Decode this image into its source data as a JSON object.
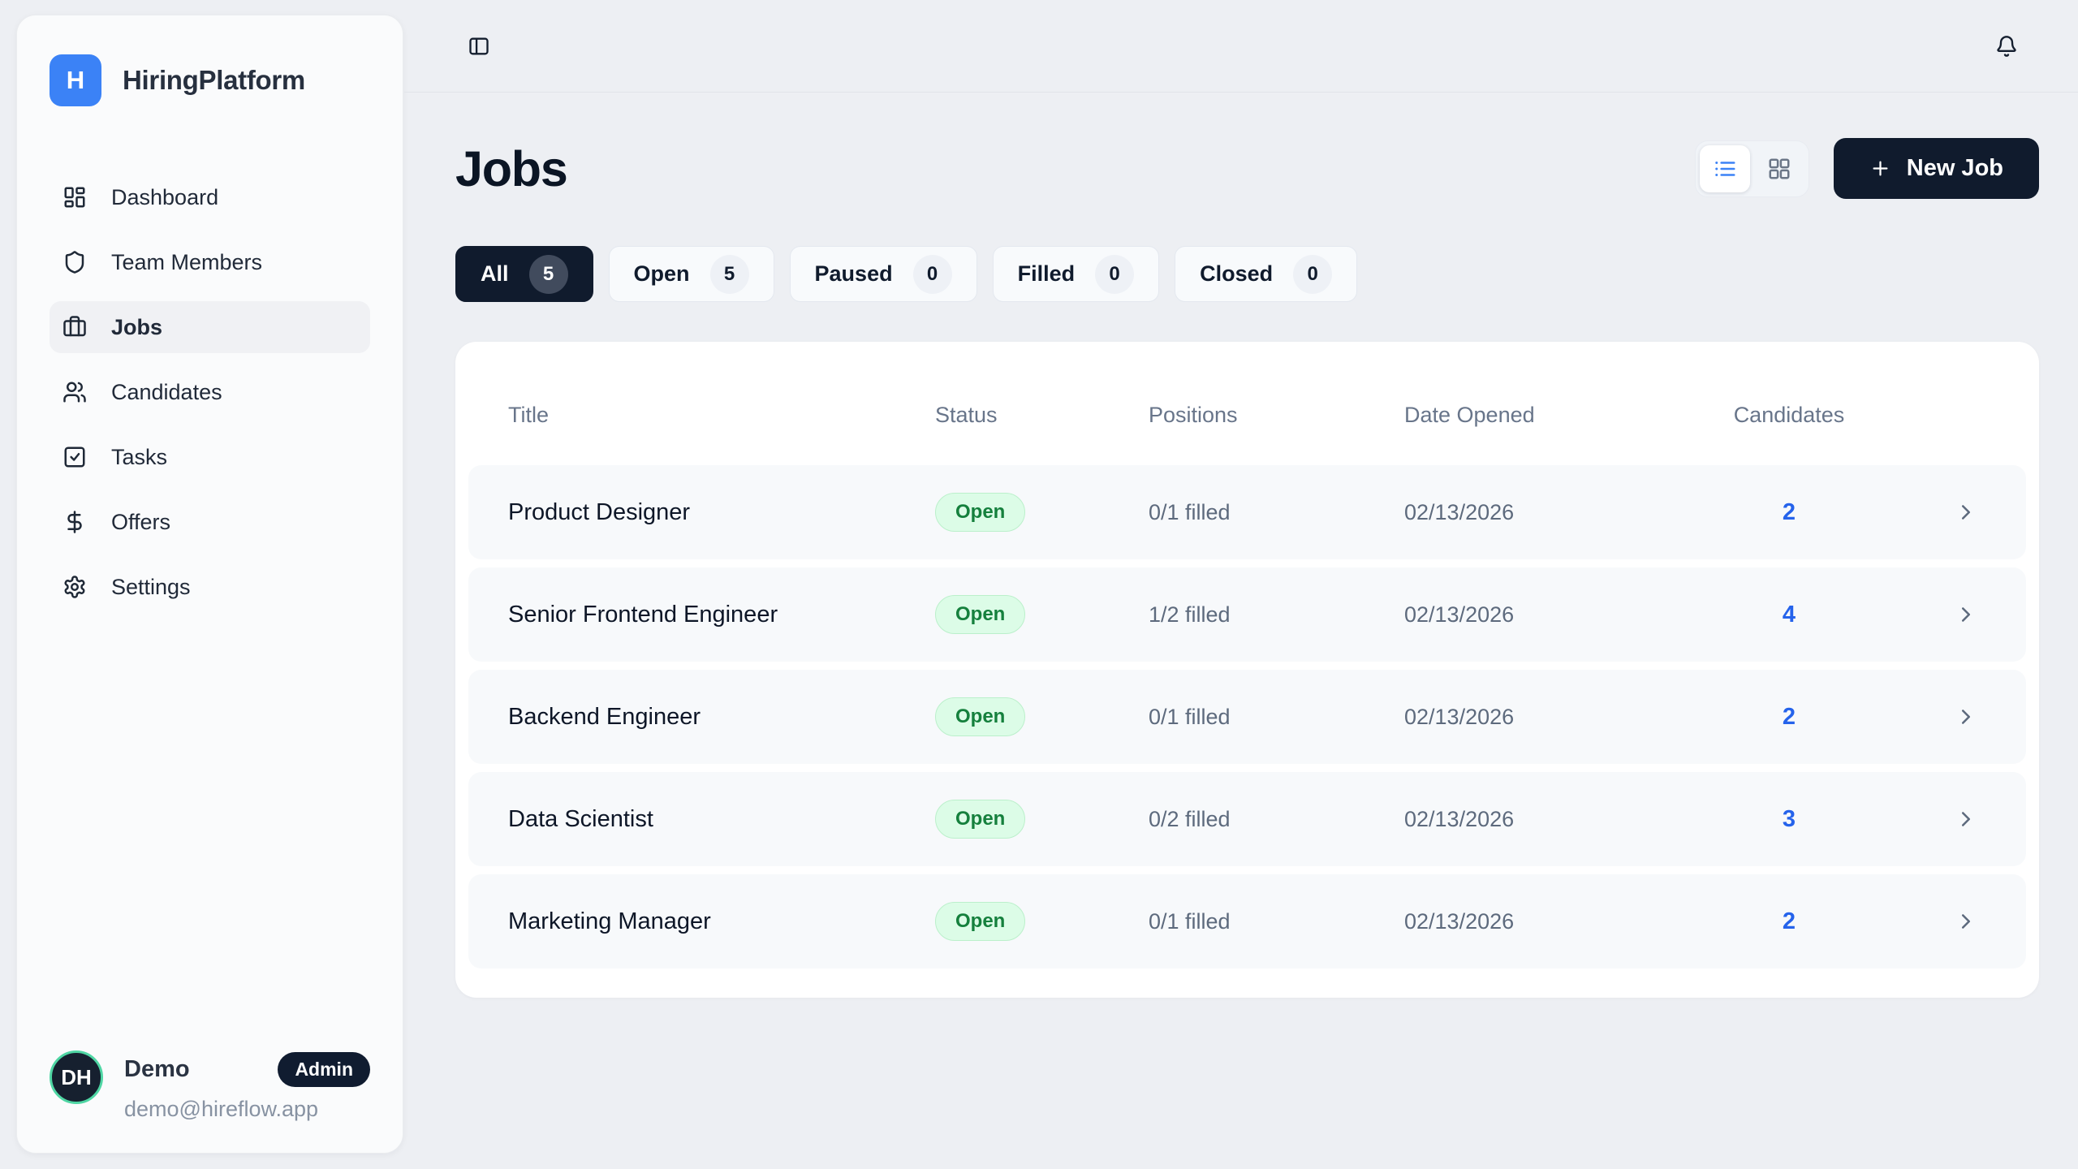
{
  "app": {
    "name": "HiringPlatform",
    "logo_letter": "H"
  },
  "colors": {
    "accent_blue": "#3b82f6",
    "dark_navy": "#101b2d",
    "open_badge_bg": "#dcfce7",
    "open_badge_text": "#15803d",
    "candidates_link_blue": "#2563eb",
    "avatar_ring_green": "#4fd6a4"
  },
  "sidebar": {
    "items": [
      {
        "label": "Dashboard",
        "icon": "dashboard-icon",
        "active": false
      },
      {
        "label": "Team Members",
        "icon": "shield-icon",
        "active": false
      },
      {
        "label": "Jobs",
        "icon": "briefcase-icon",
        "active": true
      },
      {
        "label": "Candidates",
        "icon": "users-icon",
        "active": false
      },
      {
        "label": "Tasks",
        "icon": "tasks-icon",
        "active": false
      },
      {
        "label": "Offers",
        "icon": "dollar-icon",
        "active": false
      },
      {
        "label": "Settings",
        "icon": "gear-icon",
        "active": false
      }
    ],
    "user": {
      "initials": "DH",
      "name": "Demo",
      "role_badge": "Admin",
      "email": "demo@hireflow.app"
    }
  },
  "topbar": {
    "toggle_icon": "panel-left-icon",
    "notifications_icon": "bell-icon"
  },
  "main": {
    "title": "Jobs",
    "new_job_label": "New Job",
    "view_toggle": {
      "list_icon": "list-view-icon",
      "grid_icon": "grid-view-icon"
    },
    "filters": [
      {
        "label": "All",
        "count": "5",
        "active": true
      },
      {
        "label": "Open",
        "count": "5",
        "active": false
      },
      {
        "label": "Paused",
        "count": "0",
        "active": false
      },
      {
        "label": "Filled",
        "count": "0",
        "active": false
      },
      {
        "label": "Closed",
        "count": "0",
        "active": false
      }
    ],
    "table": {
      "columns": [
        "Title",
        "Status",
        "Positions",
        "Date Opened",
        "Candidates"
      ],
      "rows": [
        {
          "title": "Product Designer",
          "status": "Open",
          "positions": "0/1 filled",
          "date_opened": "02/13/2026",
          "candidates": "2"
        },
        {
          "title": "Senior Frontend Engineer",
          "status": "Open",
          "positions": "1/2 filled",
          "date_opened": "02/13/2026",
          "candidates": "4"
        },
        {
          "title": "Backend Engineer",
          "status": "Open",
          "positions": "0/1 filled",
          "date_opened": "02/13/2026",
          "candidates": "2"
        },
        {
          "title": "Data Scientist",
          "status": "Open",
          "positions": "0/2 filled",
          "date_opened": "02/13/2026",
          "candidates": "3"
        },
        {
          "title": "Marketing Manager",
          "status": "Open",
          "positions": "0/1 filled",
          "date_opened": "02/13/2026",
          "candidates": "2"
        }
      ]
    }
  }
}
